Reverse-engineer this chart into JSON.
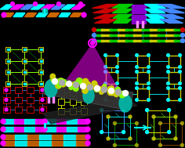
{
  "bg_color": "#000000",
  "fig_width": 2.36,
  "fig_height": 1.89,
  "dpi": 100,
  "colors": {
    "magenta": "#ff00ff",
    "cyan": "#00ffff",
    "yellow": "#cccc00",
    "yellow_bright": "#ffff00",
    "green": "#00cc00",
    "green_bright": "#00ff44",
    "red": "#cc0000",
    "blue": "#0044ff",
    "blue_bright": "#4488ff",
    "orange": "#cc6600",
    "purple": "#8800cc",
    "pink": "#ff88ff",
    "white": "#ffffff",
    "gray": "#aaaaaa",
    "dark_gray": "#444444",
    "teal": "#00bbaa",
    "lime": "#88ff00",
    "dark_teal": "#007766"
  }
}
